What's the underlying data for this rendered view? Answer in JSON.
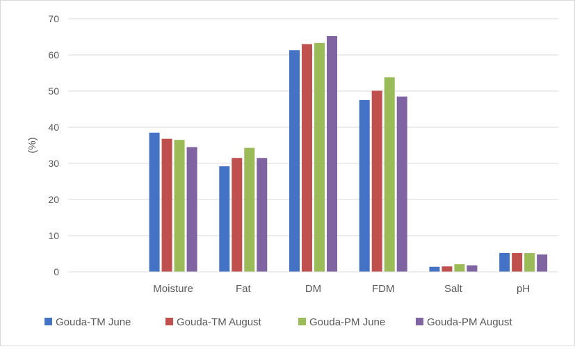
{
  "chart_data": {
    "type": "bar",
    "title": "",
    "xlabel": "",
    "ylabel": "(%)",
    "ylim": [
      0,
      70
    ],
    "yticks": [
      0,
      10,
      20,
      30,
      40,
      50,
      60,
      70
    ],
    "grid": true,
    "legend_position": "bottom",
    "categories": [
      "",
      "Moisture",
      "Fat",
      "DM",
      "FDM",
      "Salt",
      "pH"
    ],
    "series": [
      {
        "name": "Gouda-TM June",
        "color": "#4472c4",
        "values": [
          null,
          38.5,
          29.2,
          61.3,
          47.5,
          1.4,
          5.2
        ]
      },
      {
        "name": "Gouda-TM August",
        "color": "#c0504d",
        "values": [
          null,
          36.8,
          31.5,
          63.0,
          50.1,
          1.5,
          5.2
        ]
      },
      {
        "name": "Gouda-PM June",
        "color": "#9bbb59",
        "values": [
          null,
          36.5,
          34.3,
          63.3,
          53.8,
          2.1,
          5.2
        ]
      },
      {
        "name": "Gouda-PM August",
        "color": "#8064a2",
        "values": [
          null,
          34.5,
          31.5,
          65.2,
          48.5,
          1.8,
          4.8
        ]
      }
    ]
  }
}
